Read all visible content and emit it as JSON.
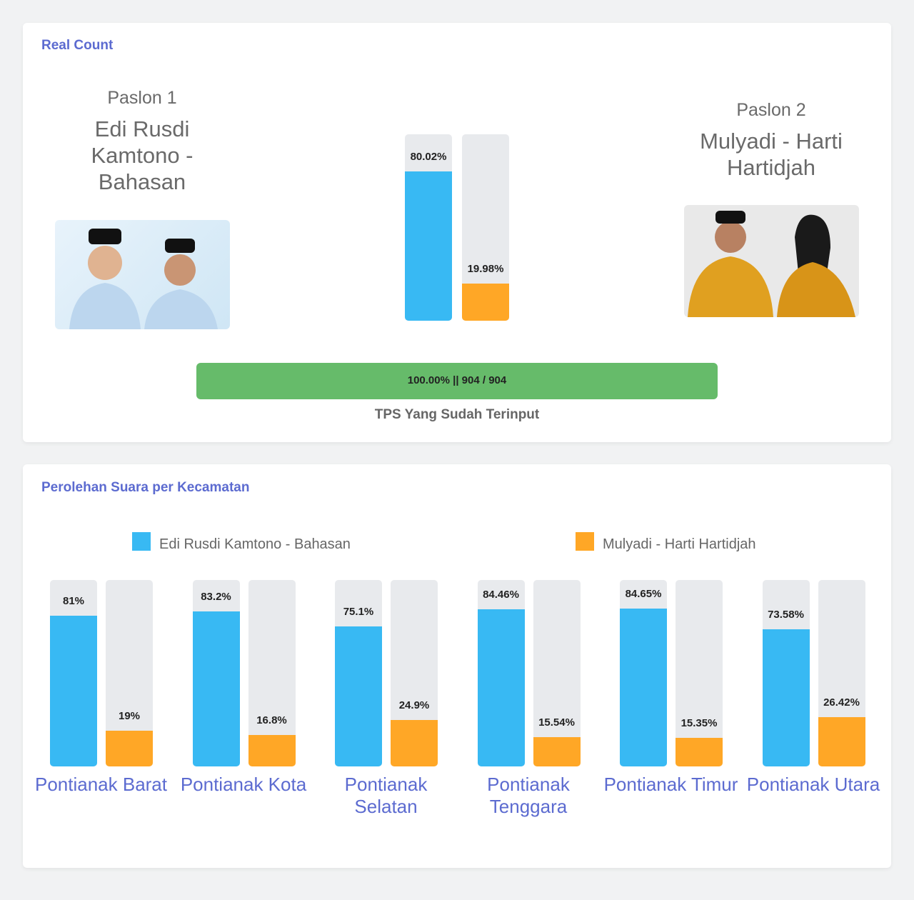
{
  "real_count": {
    "title": "Real Count",
    "candidates": [
      {
        "number": "Paslon 1",
        "name": "Edi Rusdi Kamtono - Bahasan"
      },
      {
        "number": "Paslon 2",
        "name": "Mulyadi - Harti Hartidjah"
      }
    ],
    "progress": {
      "label": "100.00% || 904 / 904",
      "value": 100,
      "max": 100,
      "caption": "TPS Yang Sudah Terinput",
      "color": "#66bb6a"
    }
  },
  "chart_data": [
    {
      "type": "bar",
      "ylim": [
        0,
        100
      ],
      "series": [
        {
          "color": "#38b9f3",
          "values": [
            80.02
          ],
          "value_labels": [
            "80.02%"
          ]
        },
        {
          "color": "#ffa726",
          "values": [
            19.98
          ],
          "value_labels": [
            "19.98%"
          ]
        }
      ]
    },
    {
      "type": "bar",
      "title": "Perolehan Suara per Kecamatan",
      "ylim": [
        0,
        100
      ],
      "categories": [
        "Pontianak Barat",
        "Pontianak Kota",
        "Pontianak Selatan",
        "Pontianak Tenggara",
        "Pontianak Timur",
        "Pontianak Utara"
      ],
      "series": [
        {
          "name": "Edi Rusdi Kamtono - Bahasan",
          "color": "#38b9f3",
          "values": [
            81,
            83.2,
            75.1,
            84.46,
            84.65,
            73.58
          ],
          "value_labels": [
            "81%",
            "83.2%",
            "75.1%",
            "84.46%",
            "84.65%",
            "73.58%"
          ]
        },
        {
          "name": "Mulyadi - Harti Hartidjah",
          "color": "#ffa726",
          "values": [
            19,
            16.8,
            24.9,
            15.54,
            15.35,
            26.42
          ],
          "value_labels": [
            "19%",
            "16.8%",
            "24.9%",
            "15.54%",
            "15.35%",
            "26.42%"
          ]
        }
      ]
    }
  ]
}
